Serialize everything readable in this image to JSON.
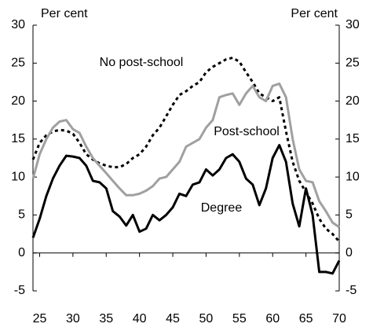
{
  "chart_data": {
    "type": "line",
    "y_label_left": "Per cent",
    "y_label_right": "Per cent",
    "x": [
      24,
      25,
      26,
      27,
      28,
      29,
      30,
      31,
      32,
      33,
      34,
      35,
      36,
      37,
      38,
      39,
      40,
      41,
      42,
      43,
      44,
      45,
      46,
      47,
      48,
      49,
      50,
      51,
      52,
      53,
      54,
      55,
      56,
      57,
      58,
      59,
      60,
      61,
      62,
      63,
      64,
      65,
      66,
      67,
      68,
      69,
      70
    ],
    "series": [
      {
        "name": "No post-school",
        "color": "#000000",
        "dashed": true,
        "values": [
          12.3,
          14.5,
          15.5,
          16,
          16.2,
          16.1,
          15.7,
          14.5,
          13,
          12.3,
          11.8,
          11.5,
          11.3,
          11.3,
          11.7,
          12.5,
          13,
          14,
          15.5,
          16.5,
          18,
          19.5,
          20.8,
          21.3,
          22,
          22.5,
          23.8,
          24.5,
          25,
          25.5,
          25.7,
          25.2,
          23.8,
          22.5,
          21,
          20.5,
          20,
          20.5,
          16,
          12,
          9.5,
          8,
          6.5,
          4.5,
          3.2,
          2.5,
          1.5
        ]
      },
      {
        "name": "Post-school",
        "color": "#a0a0a0",
        "dashed": false,
        "values": [
          9.8,
          13,
          15,
          16.5,
          17.3,
          17.5,
          16.3,
          15.8,
          14,
          12.5,
          11.5,
          10.5,
          9.5,
          8.5,
          7.6,
          7.6,
          7.8,
          8.2,
          8.8,
          9.8,
          10,
          11,
          12,
          14,
          14.5,
          15,
          16.5,
          17.5,
          20.5,
          20.8,
          21,
          19.5,
          21,
          22,
          20.5,
          20,
          22,
          22.3,
          20.5,
          15,
          11,
          9.5,
          9.3,
          6.8,
          5.5,
          4,
          3.4
        ]
      },
      {
        "name": "Degree",
        "color": "#000000",
        "dashed": false,
        "values": [
          2,
          4.5,
          7.5,
          9.8,
          11.5,
          12.8,
          12.7,
          12.5,
          11.5,
          9.5,
          9.3,
          8.5,
          5.5,
          4.8,
          3.6,
          5,
          2.8,
          3.2,
          5,
          4.3,
          5,
          6,
          7.8,
          7.5,
          9,
          9.3,
          11,
          10.2,
          11,
          12.5,
          13,
          12,
          9.8,
          9,
          6.3,
          8.5,
          12.5,
          14.2,
          12,
          6.5,
          3.5,
          8.5,
          5,
          -2.5,
          -2.5,
          -2.7,
          -1
        ]
      }
    ],
    "xlim": [
      24,
      70
    ],
    "xticks": [
      25,
      30,
      35,
      40,
      45,
      50,
      55,
      60,
      65,
      70
    ],
    "ylim": [
      -5,
      30
    ],
    "yticks": [
      -5,
      0,
      5,
      10,
      15,
      20,
      25,
      30
    ],
    "y2lim": [
      -5,
      30
    ],
    "y2ticks": [
      -5,
      0,
      5,
      10,
      15,
      20,
      25,
      30
    ],
    "grid": false
  }
}
